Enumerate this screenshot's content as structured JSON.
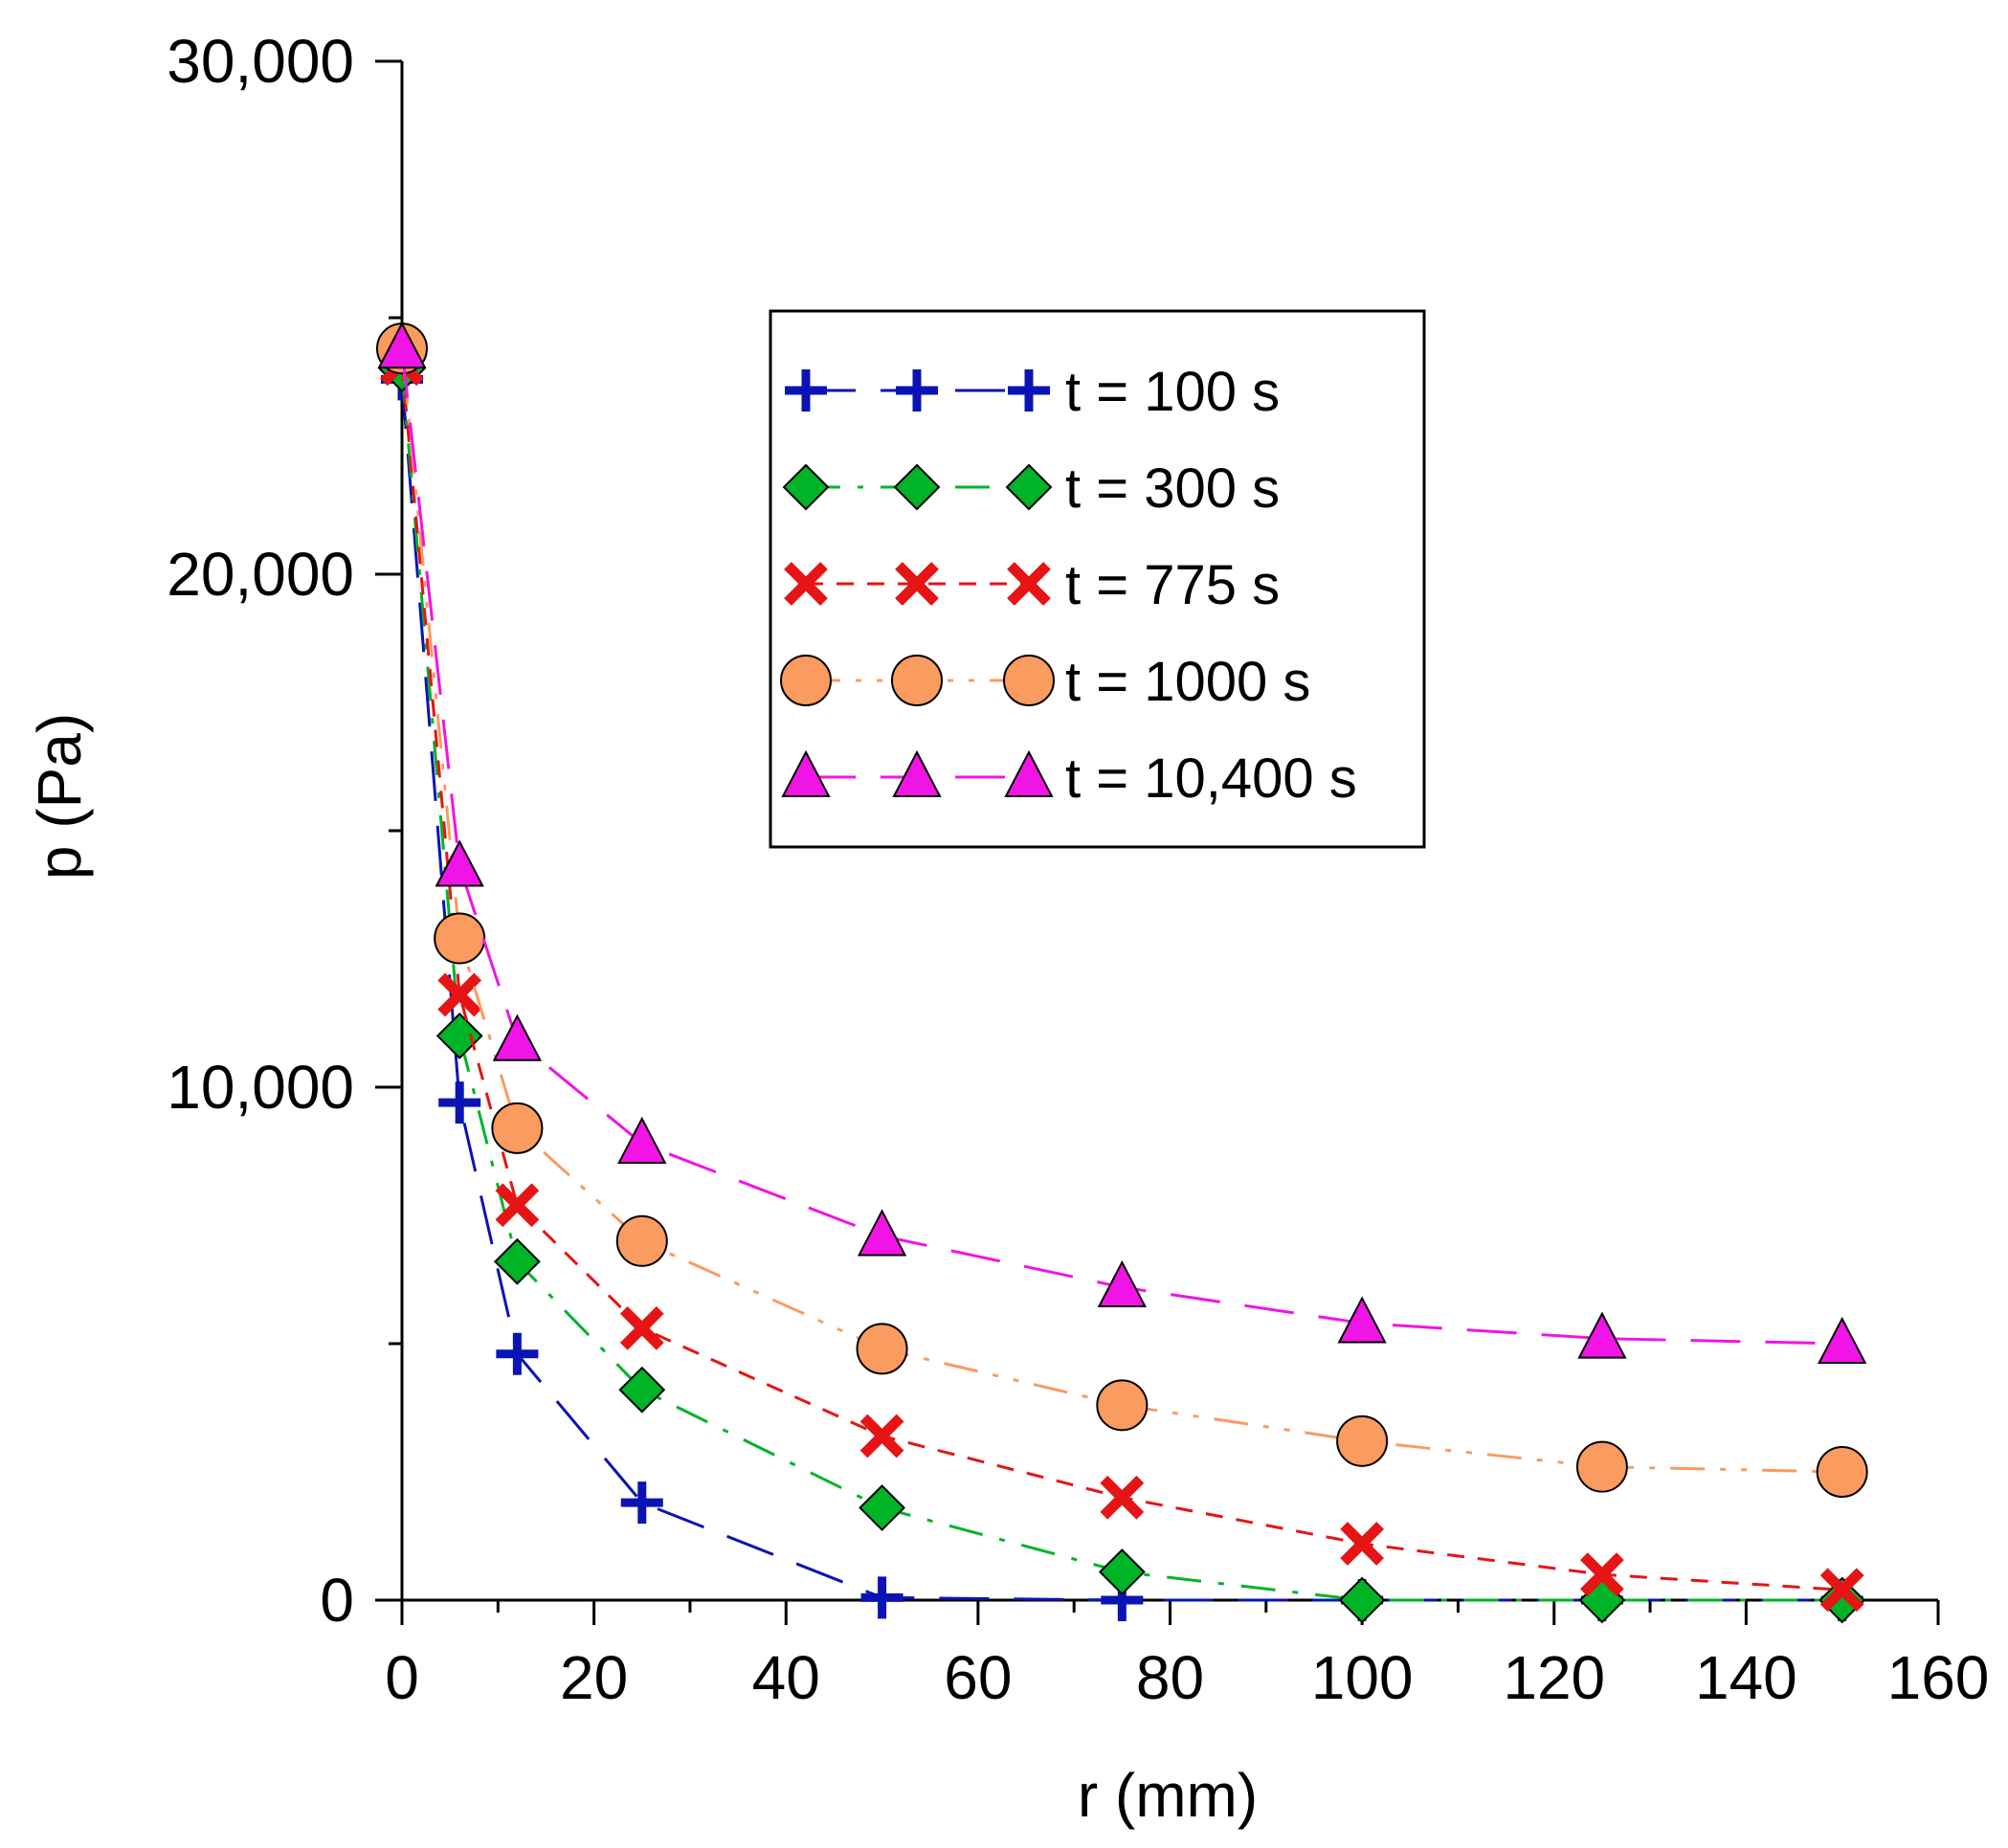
{
  "chart_data": {
    "type": "line",
    "title": "",
    "xlabel": "r (mm)",
    "ylabel": "p (Pa)",
    "xlim": [
      0,
      160
    ],
    "ylim": [
      0,
      30000
    ],
    "x_ticks": [
      0,
      20,
      40,
      60,
      80,
      100,
      120,
      140,
      160
    ],
    "x_tick_labels": [
      "0",
      "20",
      "40",
      "60",
      "80",
      "100",
      "120",
      "140",
      "160"
    ],
    "x_minor_ticks": [
      10,
      30,
      50,
      70,
      90,
      110,
      130,
      150
    ],
    "y_ticks": [
      0,
      10000,
      20000,
      30000
    ],
    "y_tick_labels": [
      "0",
      "10,000",
      "20,000",
      "30,000"
    ],
    "y_minor_ticks": [
      5000,
      15000,
      25000
    ],
    "grid": false,
    "legend_position": "top-right",
    "x": [
      0,
      6,
      12,
      25,
      50,
      75,
      100,
      125,
      150
    ],
    "series": [
      {
        "name": "t = 100 s",
        "marker": "plus",
        "color": "#0a14b4",
        "dash": "long-dash",
        "values": [
          23800,
          9700,
          4800,
          1900,
          50,
          0,
          0,
          0,
          0
        ]
      },
      {
        "name": "t = 300 s",
        "marker": "diamond",
        "color": "#00b428",
        "dash": "dash-dot",
        "values": [
          24000,
          11000,
          6600,
          4100,
          1800,
          550,
          0,
          0,
          0
        ]
      },
      {
        "name": "t = 775 s",
        "marker": "cross",
        "color": "#e61414",
        "dash": "short-dash",
        "values": [
          24100,
          11800,
          7700,
          5300,
          3200,
          2000,
          1100,
          500,
          200
        ]
      },
      {
        "name": "t = 1000 s",
        "marker": "circle",
        "color": "#fa9b5f",
        "dash": "dash-dot-dot",
        "values": [
          24400,
          12900,
          9200,
          7000,
          4900,
          3800,
          3100,
          2600,
          2500
        ]
      },
      {
        "name": "t = 10,400 s",
        "marker": "triangle",
        "color": "#f014e6",
        "dash": "long-dash",
        "values": [
          24400,
          14300,
          10900,
          8900,
          7100,
          6100,
          5400,
          5100,
          5000
        ]
      }
    ]
  }
}
